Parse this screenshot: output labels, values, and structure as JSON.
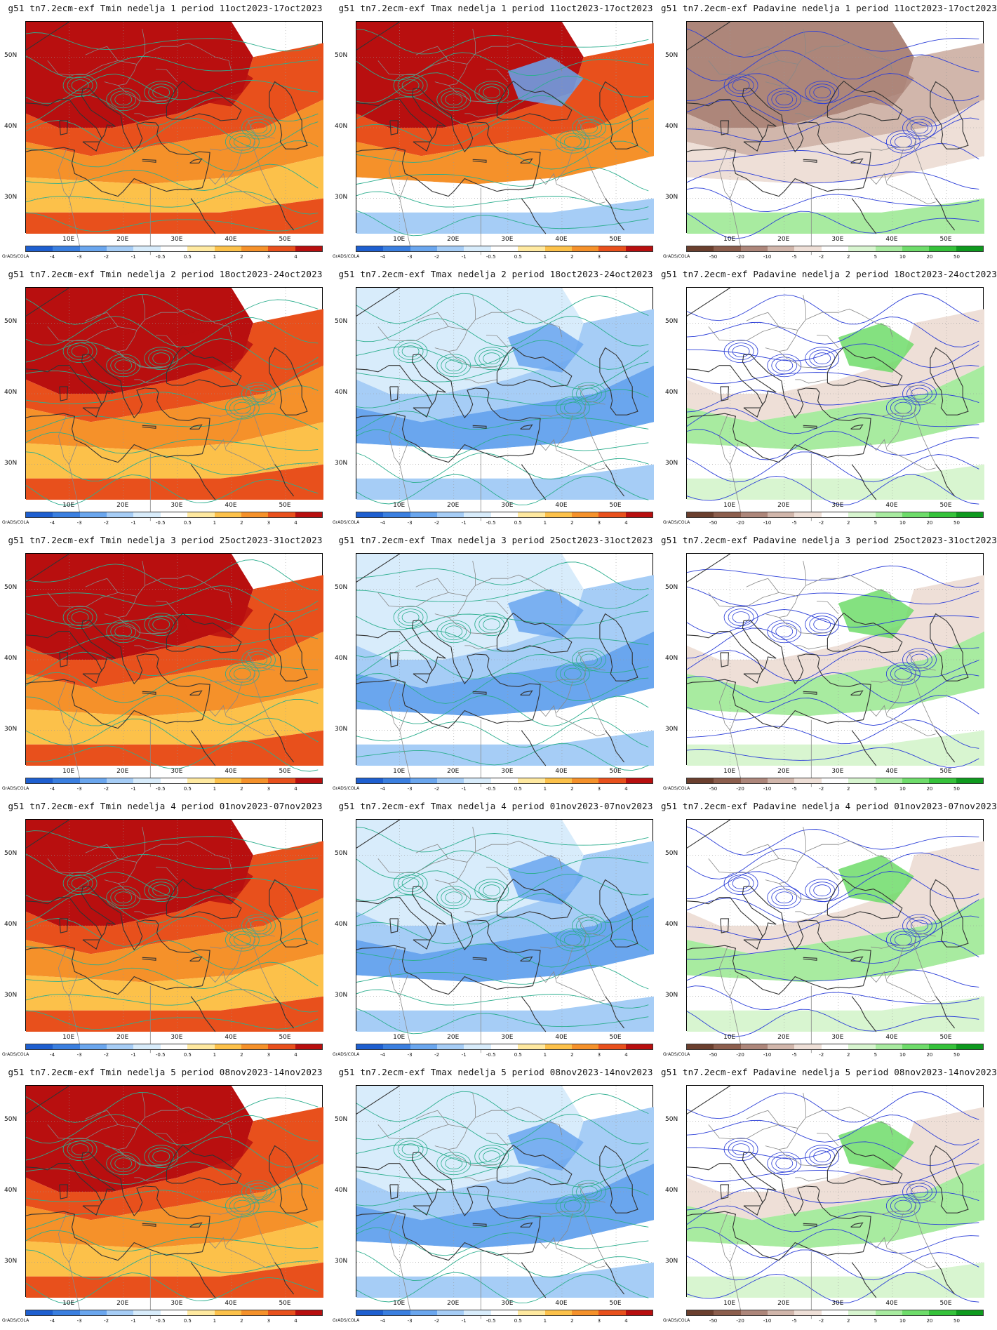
{
  "logo_text": "GrADS/COLA",
  "lat_labels": [
    "50N",
    "40N",
    "30N"
  ],
  "lon_labels": [
    "10E",
    "20E",
    "30E",
    "40E",
    "50E"
  ],
  "temp_scale": {
    "ticks": [
      "-4",
      "-3",
      "-2",
      "-1",
      "-0.5",
      "0.5",
      "1",
      "2",
      "3",
      "4"
    ],
    "colors": [
      "#1e5fd0",
      "#3a7fe0",
      "#6aa6ee",
      "#a6cdf6",
      "#d8ecfb",
      "#ffffff",
      "#ffe9a0",
      "#fcc14a",
      "#f5912a",
      "#e8501c",
      "#b80f0f"
    ]
  },
  "precip_scale": {
    "ticks": [
      "-50",
      "-20",
      "-10",
      "-5",
      "-2",
      "2",
      "5",
      "10",
      "20",
      "50"
    ],
    "colors": [
      "#6b3f2e",
      "#8c5e4d",
      "#ad867a",
      "#d1b6ab",
      "#eedfd7",
      "#ffffff",
      "#d8f5d0",
      "#a8eba0",
      "#6edc6a",
      "#35c23a",
      "#0e9a1e"
    ]
  },
  "panels": [
    {
      "title": "g51 tn7.2ecm-exf Tmin nedelja 1 period 11oct2023-17oct2023",
      "var": "tmin",
      "week": 1
    },
    {
      "title": "g51 tn7.2ecm-exf Tmax nedelja 1 period 11oct2023-17oct2023",
      "var": "tmax",
      "week": 1
    },
    {
      "title": "g51 tn7.2ecm-exf Padavine nedelja 1 period 11oct2023-17oct2023",
      "var": "precip",
      "week": 1
    },
    {
      "title": "g51 tn7.2ecm-exf Tmin nedelja 2 period 18oct2023-24oct2023",
      "var": "tmin",
      "week": 2
    },
    {
      "title": "g51 tn7.2ecm-exf Tmax nedelja 2 period 18oct2023-24oct2023",
      "var": "tmax",
      "week": 2
    },
    {
      "title": "g51 tn7.2ecm-exf Padavine nedelja 2 period 18oct2023-24oct2023",
      "var": "precip",
      "week": 2
    },
    {
      "title": "g51 tn7.2ecm-exf Tmin nedelja 3 period 25oct2023-31oct2023",
      "var": "tmin",
      "week": 3
    },
    {
      "title": "g51 tn7.2ecm-exf Tmax nedelja 3 period 25oct2023-31oct2023",
      "var": "tmax",
      "week": 3
    },
    {
      "title": "g51 tn7.2ecm-exf Padavine nedelja 3 period 25oct2023-31oct2023",
      "var": "precip",
      "week": 3
    },
    {
      "title": "g51 tn7.2ecm-exf Tmin nedelja 4 period 01nov2023-07nov2023",
      "var": "tmin",
      "week": 4
    },
    {
      "title": "g51 tn7.2ecm-exf Tmax nedelja 4 period 01nov2023-07nov2023",
      "var": "tmax",
      "week": 4
    },
    {
      "title": "g51 tn7.2ecm-exf Padavine nedelja 4 period 01nov2023-07nov2023",
      "var": "precip",
      "week": 4
    },
    {
      "title": "g51 tn7.2ecm-exf Tmin nedelja 5 period 08nov2023-14nov2023",
      "var": "tmin",
      "week": 5
    },
    {
      "title": "g51 tn7.2ecm-exf Tmax nedelja 5 period 08nov2023-14nov2023",
      "var": "tmax",
      "week": 5
    },
    {
      "title": "g51 tn7.2ecm-exf Padavine nedelja 5 period 08nov2023-14nov2023",
      "var": "precip",
      "week": 5
    }
  ],
  "map_colors": {
    "tmin": [
      "#b80f0f",
      "#e8501c",
      "#f5912a",
      "#fcc14a",
      "#e8501c",
      "#b80f0f"
    ],
    "tmax_week1": [
      "#b80f0f",
      "#e8501c",
      "#f5912a",
      "#ffffff",
      "#a6cdf6",
      "#6aa6ee"
    ],
    "tmax": [
      "#d8ecfb",
      "#a6cdf6",
      "#6aa6ee",
      "#ffffff",
      "#a6cdf6",
      "#6aa6ee"
    ],
    "precip_week1": [
      "#ad867a",
      "#d1b6ab",
      "#eedfd7",
      "#ffffff",
      "#a8eba0",
      "#ad867a"
    ],
    "precip": [
      "#ffffff",
      "#eedfd7",
      "#a8eba0",
      "#ffffff",
      "#d8f5d0",
      "#6edc6a"
    ]
  }
}
